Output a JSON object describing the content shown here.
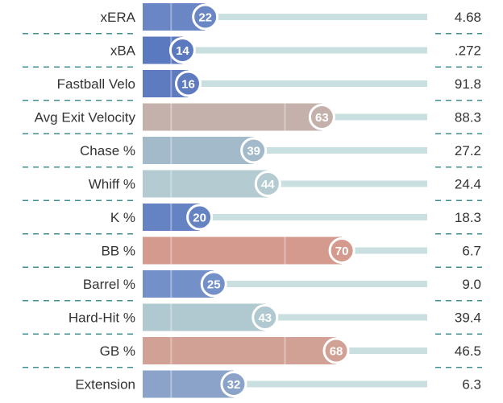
{
  "chart_data": {
    "type": "bar",
    "title": "",
    "xlabel": "",
    "ylabel": "",
    "xlim": [
      0,
      100
    ],
    "grid": "faint vertical lines at 10, 50, 90",
    "rows": [
      {
        "metric": "xERA",
        "percentile": 22,
        "value": "4.68",
        "color": "#6a86c4"
      },
      {
        "metric": "xBA",
        "percentile": 14,
        "value": ".272",
        "color": "#5b79bf"
      },
      {
        "metric": "Fastball Velo",
        "percentile": 16,
        "value": "91.8",
        "color": "#5e7bc0"
      },
      {
        "metric": "Avg Exit Velocity",
        "percentile": 63,
        "value": "88.3",
        "color": "#c4b1ab"
      },
      {
        "metric": "Chase %",
        "percentile": 39,
        "value": "27.2",
        "color": "#a3bacb"
      },
      {
        "metric": "Whiff %",
        "percentile": 44,
        "value": "24.4",
        "color": "#b3cbd1"
      },
      {
        "metric": "K %",
        "percentile": 20,
        "value": "18.3",
        "color": "#6582c3"
      },
      {
        "metric": "BB %",
        "percentile": 70,
        "value": "6.7",
        "color": "#d49a8e"
      },
      {
        "metric": "Barrel %",
        "percentile": 25,
        "value": "9.0",
        "color": "#7390c8"
      },
      {
        "metric": "Hard-Hit %",
        "percentile": 43,
        "value": "39.4",
        "color": "#b0c8cf"
      },
      {
        "metric": "GB %",
        "percentile": 68,
        "value": "46.5",
        "color": "#d0a194"
      },
      {
        "metric": "Extension",
        "percentile": 32,
        "value": "6.3",
        "color": "#8ba3c9"
      }
    ],
    "track_color": "#c9dfe0",
    "divider_color": "#3f8f8f"
  }
}
